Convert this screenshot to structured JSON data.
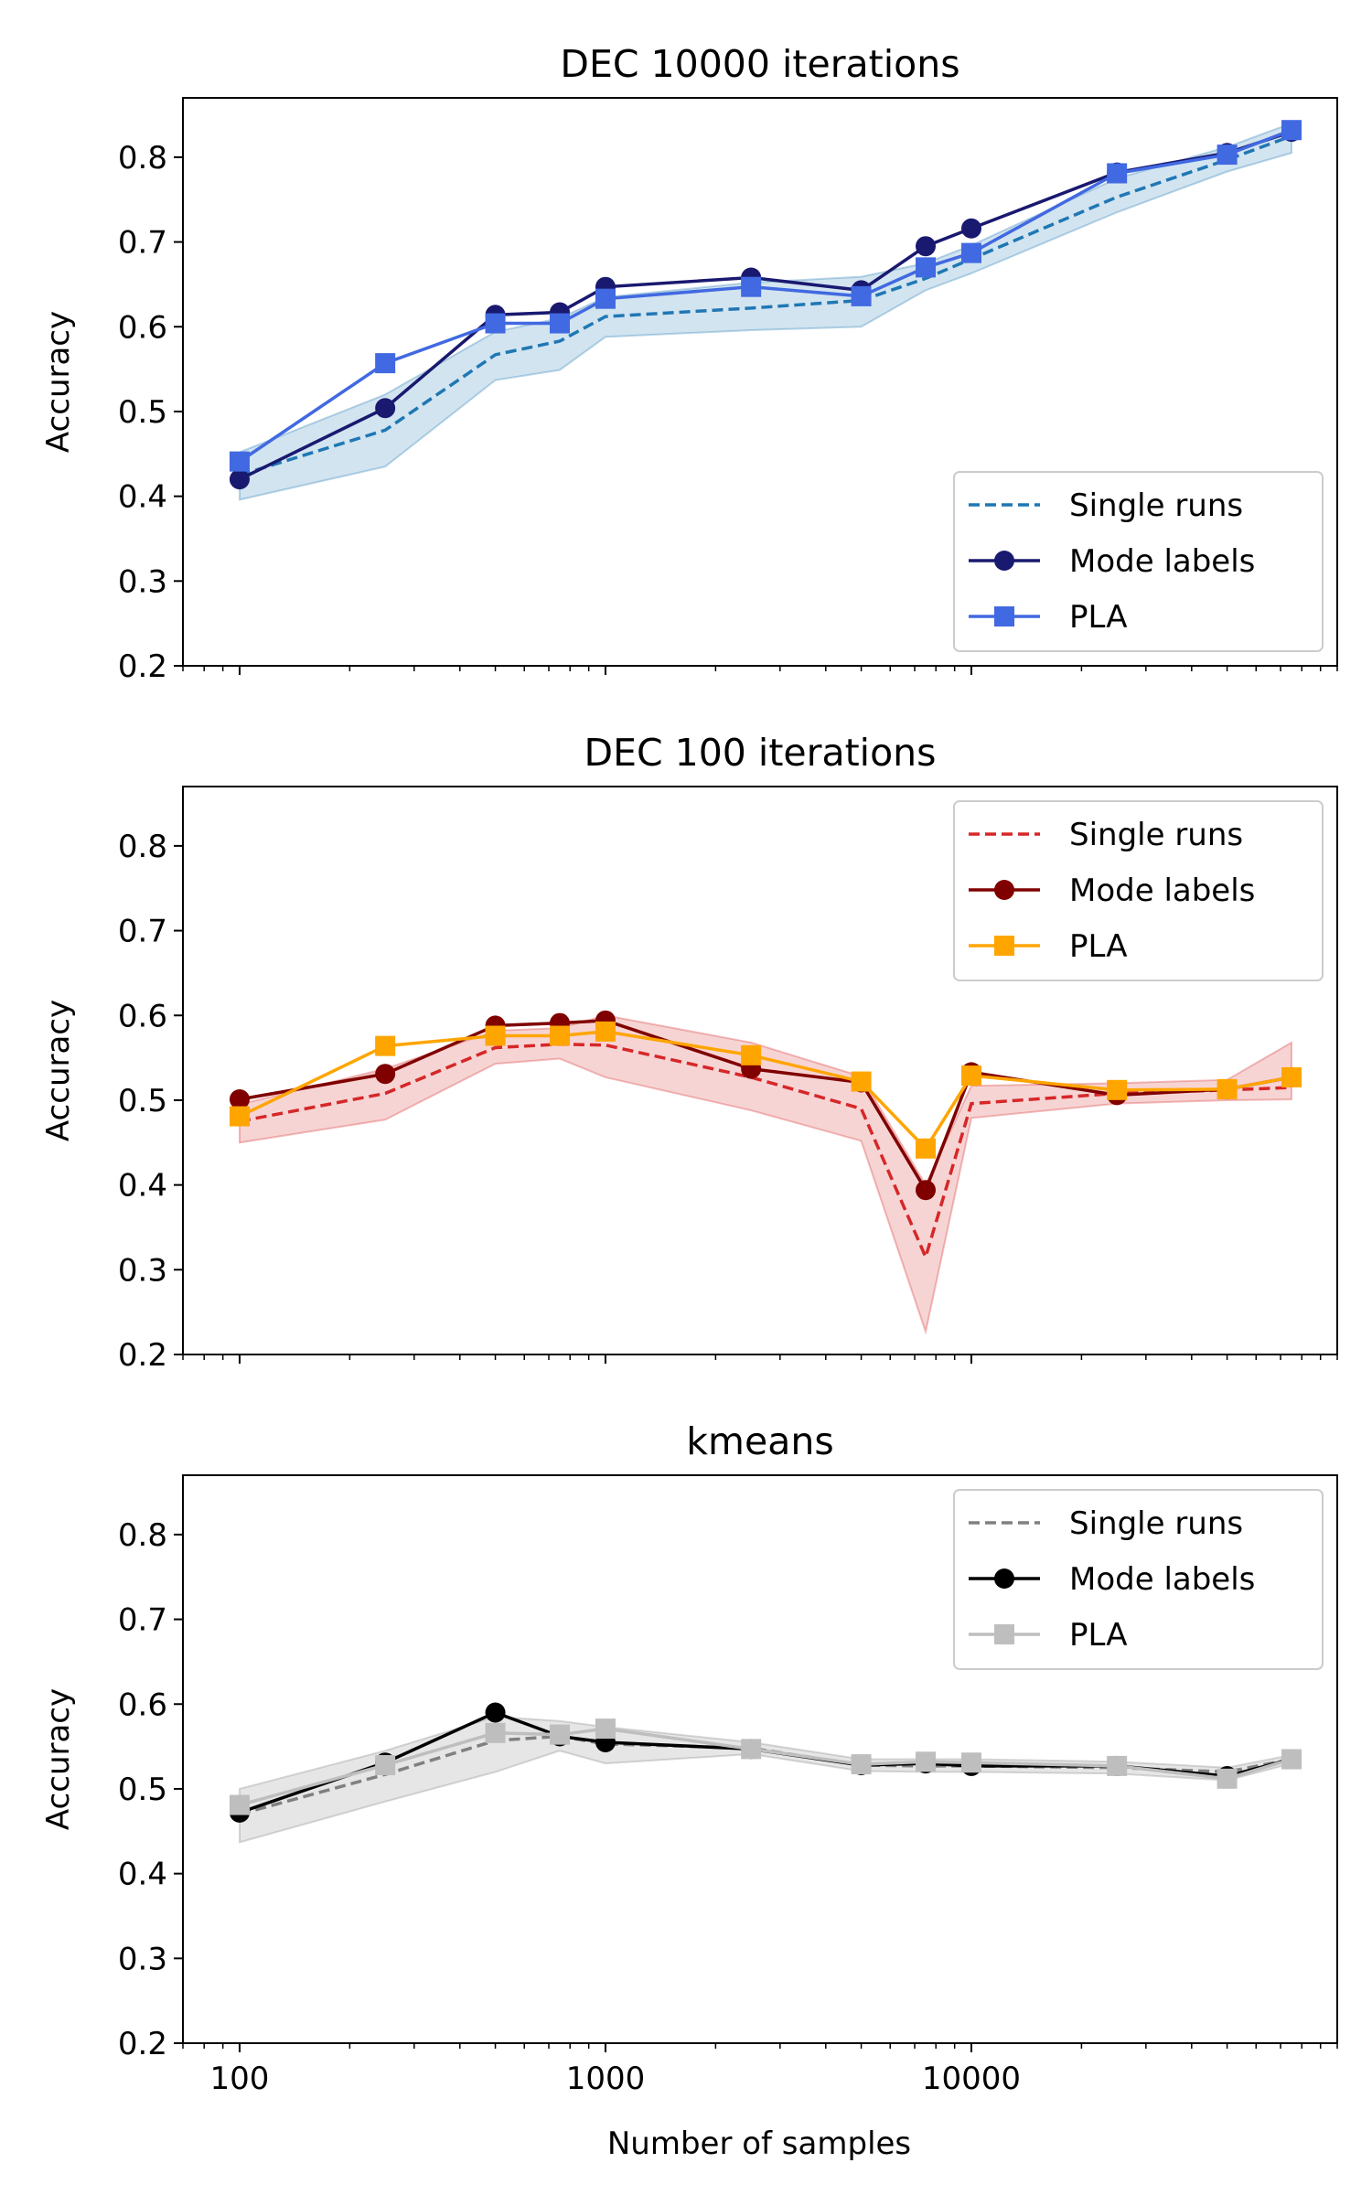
{
  "figure": {
    "xlabel": "Number of samples",
    "ylabel": "Accuracy",
    "x_ticks": [
      100,
      1000,
      10000
    ],
    "x_tick_labels": [
      "100",
      "1000",
      "10000"
    ],
    "y_ticks": [
      0.2,
      0.3,
      0.4,
      0.5,
      0.6,
      0.7,
      0.8
    ],
    "y_tick_labels": [
      "0.2",
      "0.3",
      "0.4",
      "0.5",
      "0.6",
      "0.7",
      "0.8"
    ]
  },
  "chart_data": [
    {
      "type": "line",
      "title": "DEC 10000 iterations",
      "xlabel": "",
      "ylabel": "Accuracy",
      "xscale": "log",
      "xlim": [
        70,
        100000
      ],
      "ylim": [
        0.2,
        0.87
      ],
      "legend_position": "lower-right",
      "x": [
        100,
        250,
        500,
        750,
        1000,
        2500,
        5000,
        7500,
        10000,
        25000,
        50000,
        75000
      ],
      "series": [
        {
          "name": "Single runs",
          "style": "dashed",
          "marker": "none",
          "color": "#1f77b4",
          "values": [
            0.425,
            0.478,
            0.567,
            0.583,
            0.612,
            0.622,
            0.631,
            0.657,
            0.68,
            0.753,
            0.797,
            0.825
          ],
          "band_lower": [
            0.396,
            0.435,
            0.537,
            0.549,
            0.588,
            0.596,
            0.6,
            0.643,
            0.663,
            0.735,
            0.783,
            0.805
          ],
          "band_upper": [
            0.452,
            0.52,
            0.594,
            0.61,
            0.635,
            0.652,
            0.659,
            0.675,
            0.696,
            0.775,
            0.812,
            0.84
          ],
          "band_color": "#1f77b4"
        },
        {
          "name": "Mode labels",
          "style": "solid",
          "marker": "circle",
          "color": "#191970",
          "values": [
            0.42,
            0.504,
            0.614,
            0.617,
            0.647,
            0.658,
            0.643,
            0.695,
            0.716,
            0.782,
            0.805,
            0.83
          ]
        },
        {
          "name": "PLA",
          "style": "solid",
          "marker": "square",
          "color": "#4169e1",
          "values": [
            0.441,
            0.557,
            0.604,
            0.604,
            0.633,
            0.647,
            0.636,
            0.67,
            0.687,
            0.781,
            0.803,
            0.832
          ]
        }
      ]
    },
    {
      "type": "line",
      "title": "DEC 100 iterations",
      "xlabel": "",
      "ylabel": "Accuracy",
      "xscale": "log",
      "xlim": [
        70,
        100000
      ],
      "ylim": [
        0.2,
        0.87
      ],
      "legend_position": "upper-right",
      "x": [
        100,
        250,
        500,
        750,
        1000,
        2500,
        5000,
        7500,
        10000,
        25000,
        50000,
        75000
      ],
      "series": [
        {
          "name": "Single runs",
          "style": "dashed",
          "marker": "none",
          "color": "#d62728",
          "values": [
            0.475,
            0.508,
            0.562,
            0.566,
            0.565,
            0.527,
            0.49,
            0.315,
            0.496,
            0.508,
            0.512,
            0.515
          ],
          "band_lower": [
            0.45,
            0.477,
            0.543,
            0.549,
            0.527,
            0.488,
            0.452,
            0.227,
            0.479,
            0.496,
            0.5,
            0.501
          ],
          "band_upper": [
            0.495,
            0.537,
            0.582,
            0.585,
            0.6,
            0.568,
            0.528,
            0.4,
            0.517,
            0.52,
            0.524,
            0.568
          ],
          "band_color": "#d62728"
        },
        {
          "name": "Mode labels",
          "style": "solid",
          "marker": "circle",
          "color": "#800000",
          "values": [
            0.501,
            0.531,
            0.588,
            0.591,
            0.594,
            0.537,
            0.521,
            0.394,
            0.533,
            0.506,
            0.513,
            0.527
          ]
        },
        {
          "name": "PLA",
          "style": "solid",
          "marker": "square",
          "color": "#ffa500",
          "values": [
            0.481,
            0.564,
            0.576,
            0.576,
            0.581,
            0.553,
            0.522,
            0.443,
            0.529,
            0.512,
            0.513,
            0.527
          ]
        }
      ]
    },
    {
      "type": "line",
      "title": "kmeans",
      "xlabel": "Number of samples",
      "ylabel": "Accuracy",
      "xscale": "log",
      "xlim": [
        70,
        100000
      ],
      "ylim": [
        0.2,
        0.87
      ],
      "legend_position": "upper-right",
      "x": [
        100,
        250,
        500,
        750,
        1000,
        2500,
        5000,
        7500,
        10000,
        25000,
        50000,
        75000
      ],
      "series": [
        {
          "name": "Single runs",
          "style": "dashed",
          "marker": "none",
          "color": "#808080",
          "values": [
            0.47,
            0.517,
            0.557,
            0.562,
            0.553,
            0.548,
            0.528,
            0.527,
            0.527,
            0.525,
            0.52,
            0.535
          ],
          "band_lower": [
            0.437,
            0.485,
            0.52,
            0.545,
            0.53,
            0.541,
            0.521,
            0.52,
            0.52,
            0.518,
            0.51,
            0.53
          ],
          "band_upper": [
            0.5,
            0.545,
            0.585,
            0.58,
            0.573,
            0.555,
            0.535,
            0.535,
            0.535,
            0.532,
            0.525,
            0.54
          ],
          "band_color": "#808080"
        },
        {
          "name": "Mode labels",
          "style": "solid",
          "marker": "circle",
          "color": "#000000",
          "values": [
            0.472,
            0.531,
            0.59,
            0.562,
            0.555,
            0.547,
            0.528,
            0.53,
            0.527,
            0.527,
            0.515,
            0.535
          ]
        },
        {
          "name": "PLA",
          "style": "solid",
          "marker": "square",
          "color": "#bebebe",
          "values": [
            0.481,
            0.528,
            0.566,
            0.564,
            0.571,
            0.547,
            0.529,
            0.532,
            0.531,
            0.527,
            0.512,
            0.535
          ]
        }
      ]
    }
  ]
}
